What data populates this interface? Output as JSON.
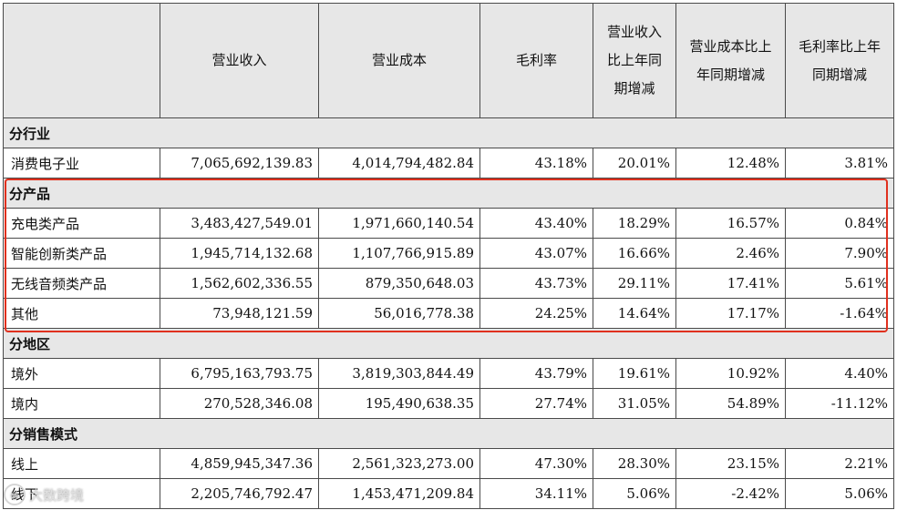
{
  "header": [
    "",
    "营业收入",
    "营业成本",
    "毛利率",
    "营业收入比上年同期增减",
    "营业成本比上年同期增减",
    "毛利率比上年同期增减"
  ],
  "sections": [
    {
      "title": "分行业",
      "rows": [
        [
          "消费电子业",
          "7,065,692,139.83",
          "4,014,794,482.84",
          "43.18%",
          "20.01%",
          "12.48%",
          "3.81%"
        ]
      ]
    },
    {
      "title": "分产品",
      "rows": [
        [
          "充电类产品",
          "3,483,427,549.01",
          "1,971,660,140.54",
          "43.40%",
          "18.29%",
          "16.57%",
          "0.84%"
        ],
        [
          "智能创新类产品",
          "1,945,714,132.68",
          "1,107,766,915.89",
          "43.07%",
          "16.66%",
          "2.46%",
          "7.90%"
        ],
        [
          "无线音频类产品",
          "1,562,602,336.55",
          "879,350,648.03",
          "43.73%",
          "29.11%",
          "17.41%",
          "5.61%"
        ],
        [
          "其他",
          "73,948,121.59",
          "56,016,778.38",
          "24.25%",
          "14.64%",
          "17.17%",
          "-1.64%"
        ]
      ]
    },
    {
      "title": "分地区",
      "rows": [
        [
          "境外",
          "6,795,163,793.75",
          "3,819,303,844.49",
          "43.79%",
          "19.61%",
          "10.92%",
          "4.40%"
        ],
        [
          "境内",
          "270,528,346.08",
          "195,490,638.35",
          "27.74%",
          "31.05%",
          "54.89%",
          "-11.12%"
        ]
      ]
    },
    {
      "title": "分销售模式",
      "rows": [
        [
          "线上",
          "4,859,945,347.36",
          "2,561,323,273.00",
          "47.30%",
          "28.30%",
          "23.15%",
          "2.21%"
        ],
        [
          "线下",
          "2,205,746,792.47",
          "1,453,471,209.84",
          "34.11%",
          "5.06%",
          "-2.42%",
          "5.06%"
        ]
      ]
    }
  ],
  "watermark": "大数跨境",
  "highlight_color": "#e0301e"
}
